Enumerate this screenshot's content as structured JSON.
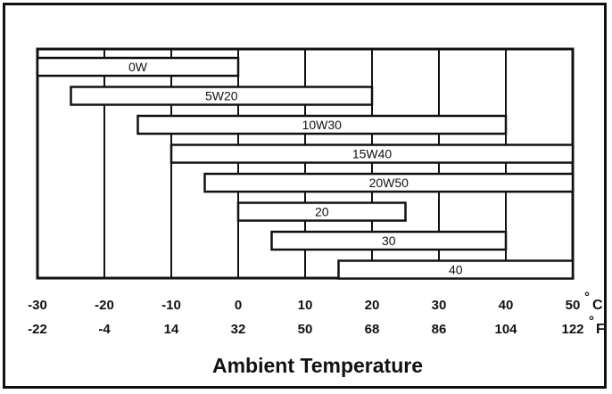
{
  "chart_data": {
    "type": "bar",
    "orientation": "horizontal-range",
    "title": "",
    "xlabel": "Ambient Temperature",
    "ylabel": "",
    "grid": true,
    "x_unit_primary": "C",
    "x_unit_secondary": "F",
    "xlim": [
      -30,
      50
    ],
    "x_ticks_c": [
      "-30",
      "-20",
      "-10",
      "0",
      "10",
      "20",
      "30",
      "40",
      "50"
    ],
    "x_ticks_f": [
      "-22",
      "-4",
      "14",
      "32",
      "50",
      "68",
      "86",
      "104",
      "122"
    ],
    "series": [
      {
        "label": "0W",
        "min": -30,
        "max": 0
      },
      {
        "label": "5W20",
        "min": -25,
        "max": 20
      },
      {
        "label": "10W30",
        "min": -15,
        "max": 40
      },
      {
        "label": "15W40",
        "min": -10,
        "max": 50
      },
      {
        "label": "20W50",
        "min": -5,
        "max": 50
      },
      {
        "label": "20",
        "min": 0,
        "max": 25
      },
      {
        "label": "30",
        "min": 5,
        "max": 40
      },
      {
        "label": "40",
        "min": 15,
        "max": 50
      }
    ]
  }
}
